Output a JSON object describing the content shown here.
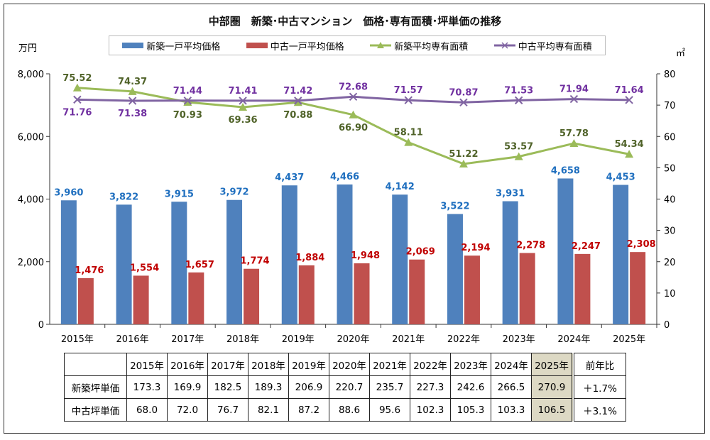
{
  "chart_data": {
    "type": "bar+line",
    "title": "中部圏　新築･中古マンション　価格･専有面積･坪単価の推移",
    "ylabel": "万円",
    "y2label": "㎡",
    "ylim": [
      0,
      8000
    ],
    "yticks": [
      "0",
      "2,000",
      "4,000",
      "6,000",
      "8,000"
    ],
    "y2lim": [
      0,
      80
    ],
    "y2ticks": [
      "0",
      "10",
      "20",
      "30",
      "40",
      "50",
      "60",
      "70",
      "80"
    ],
    "legend_position": "top",
    "categories": [
      "2015年",
      "2016年",
      "2017年",
      "2018年",
      "2019年",
      "2020年",
      "2021年",
      "2022年",
      "2023年",
      "2024年",
      "2025年"
    ],
    "series": [
      {
        "name": "新築一戸平均価格",
        "type": "bar",
        "axis": "left",
        "color": "#4f81bd",
        "label_color": "#1f6fbf",
        "values": [
          3960,
          3822,
          3915,
          3972,
          4437,
          4466,
          4142,
          3522,
          3931,
          4658,
          4453
        ],
        "labels": [
          "3,960",
          "3,822",
          "3,915",
          "3,972",
          "4,437",
          "4,466",
          "4,142",
          "3,522",
          "3,931",
          "4,658",
          "4,453"
        ]
      },
      {
        "name": "中古一戸平均価格",
        "type": "bar",
        "axis": "left",
        "color": "#c0504d",
        "label_color": "#c00000",
        "values": [
          1476,
          1554,
          1657,
          1774,
          1884,
          1948,
          2069,
          2194,
          2278,
          2247,
          2308
        ],
        "labels": [
          "1,476",
          "1,554",
          "1,657",
          "1,774",
          "1,884",
          "1,948",
          "2,069",
          "2,194",
          "2,278",
          "2,247",
          "2,308"
        ]
      },
      {
        "name": "新築平均専有面積",
        "type": "line",
        "axis": "right",
        "marker": "triangle",
        "color": "#9bbb59",
        "label_color": "#4f6228",
        "values": [
          75.52,
          74.37,
          70.93,
          69.36,
          70.88,
          66.9,
          58.11,
          51.22,
          53.57,
          57.78,
          54.34
        ],
        "labels": [
          "75.52",
          "74.37",
          "70.93",
          "69.36",
          "70.88",
          "66.90",
          "58.11",
          "51.22",
          "53.57",
          "57.78",
          "54.34"
        ]
      },
      {
        "name": "中古平均専有面積",
        "type": "line",
        "axis": "right",
        "marker": "x",
        "color": "#8064a2",
        "label_color": "#7030a0",
        "values": [
          71.76,
          71.38,
          71.44,
          71.41,
          71.42,
          72.68,
          71.57,
          70.87,
          71.53,
          71.94,
          71.64
        ],
        "labels": [
          "71.76",
          "71.38",
          "71.44",
          "71.41",
          "71.42",
          "72.68",
          "71.57",
          "70.87",
          "71.53",
          "71.94",
          "71.64"
        ]
      }
    ],
    "table": {
      "headers": [
        "2015年",
        "2016年",
        "2017年",
        "2018年",
        "2019年",
        "2020年",
        "2021年",
        "2022年",
        "2023年",
        "2024年",
        "2025年"
      ],
      "change_header": "前年比",
      "highlight_color": "#ddd9c4",
      "rows": [
        {
          "label": "新築坪単価",
          "values": [
            "173.3",
            "169.9",
            "182.5",
            "189.3",
            "206.9",
            "220.7",
            "235.7",
            "227.3",
            "242.6",
            "266.5",
            "270.9"
          ],
          "change": "＋1.7%"
        },
        {
          "label": "中古坪単価",
          "values": [
            "68.0",
            "72.0",
            "76.7",
            "82.1",
            "87.2",
            "88.6",
            "95.6",
            "102.3",
            "105.3",
            "103.3",
            "106.5"
          ],
          "change": "＋3.1%"
        }
      ]
    }
  }
}
